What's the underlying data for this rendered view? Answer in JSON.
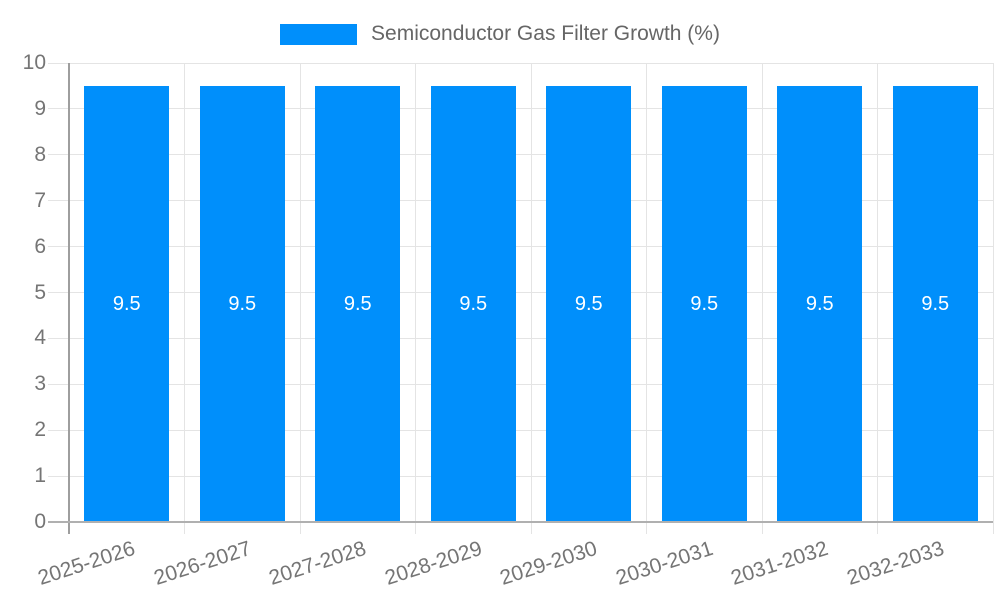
{
  "legend": {
    "label": "Semiconductor Gas Filter Growth (%)"
  },
  "chart_data": {
    "type": "bar",
    "title": "Semiconductor Gas Filter Growth (%)",
    "categories": [
      "2025-2026",
      "2026-2027",
      "2027-2028",
      "2028-2029",
      "2029-2030",
      "2030-2031",
      "2031-2032",
      "2032-2033"
    ],
    "series": [
      {
        "name": "Semiconductor Gas Filter Growth (%)",
        "values": [
          9.5,
          9.5,
          9.5,
          9.5,
          9.5,
          9.5,
          9.5,
          9.5
        ]
      }
    ],
    "value_labels": [
      "9.5",
      "9.5",
      "9.5",
      "9.5",
      "9.5",
      "9.5",
      "9.5",
      "9.5"
    ],
    "xlabel": "",
    "ylabel": "",
    "ylim": [
      0,
      10
    ],
    "y_ticks": [
      0,
      1,
      2,
      3,
      4,
      5,
      6,
      7,
      8,
      9,
      10
    ],
    "grid": true,
    "legend_position": "top",
    "colors": {
      "bar": "#008FFB",
      "value_label": "#ffffff",
      "axis_text": "#757575",
      "legend_text": "#666666",
      "grid_line": "#e4e4e4",
      "axis_line": "#9e9e9e",
      "baseline": "#b0b0b0"
    }
  }
}
